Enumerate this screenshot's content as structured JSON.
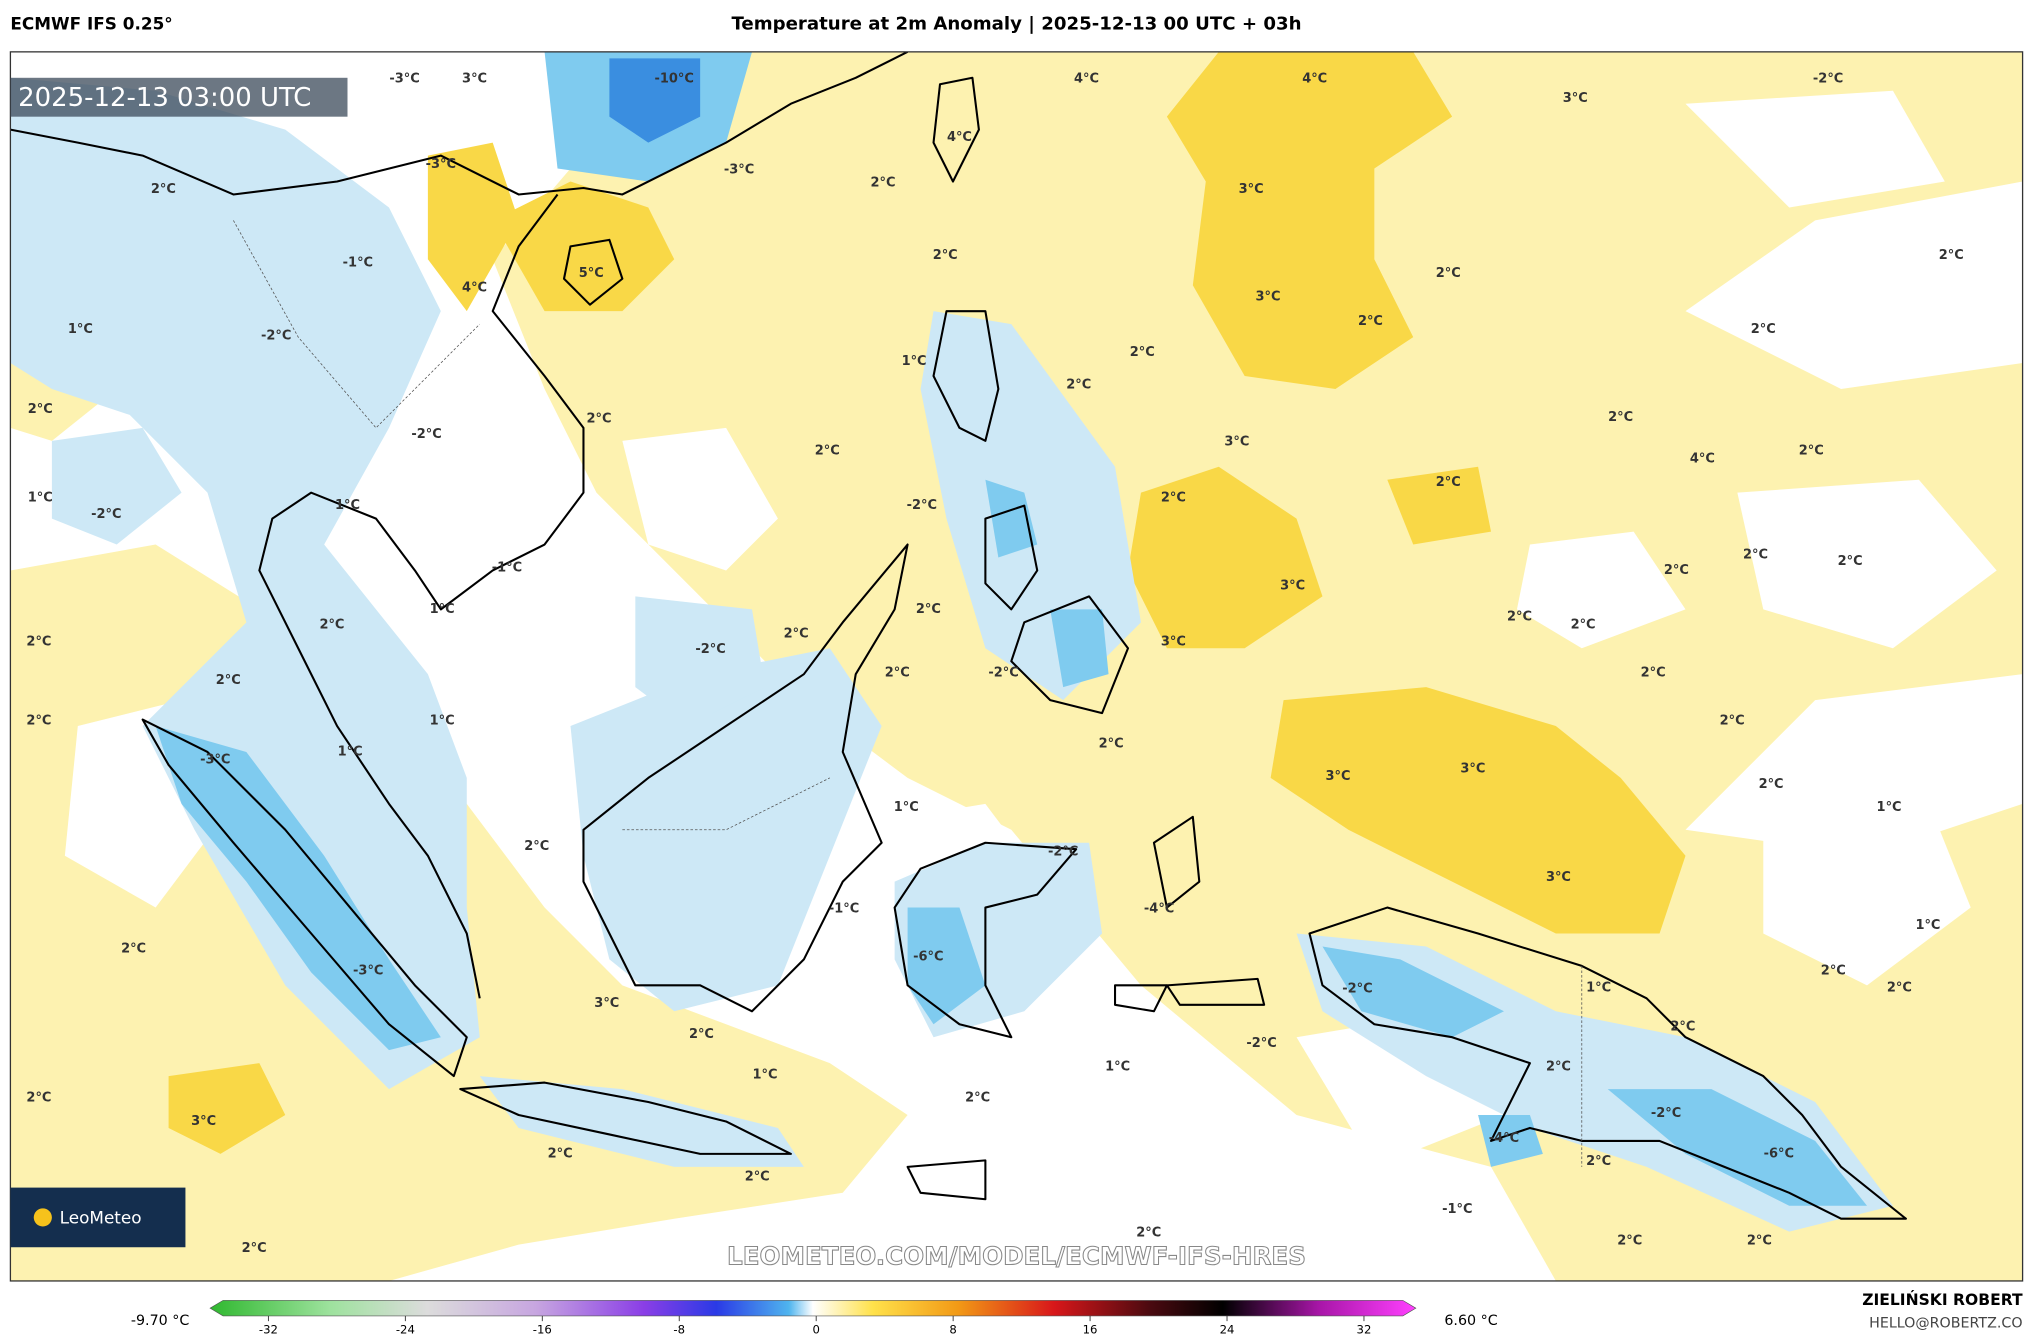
{
  "header": {
    "model": "ECMWF IFS 0.25°",
    "title": "Temperature at 2m Anomaly | 2025-12-13 00 UTC + 03h"
  },
  "map": {
    "timestamp": "2025-12-13 03:00 UTC",
    "logo": "LeoMeteo",
    "watermark": "LEOMETEO.COM/MODEL/ECMWF-IFS-HRES",
    "contour_labels": [
      "-3°C",
      "3°C",
      "-10°C",
      "4°C",
      "4°C",
      "3°C",
      "-2°C",
      "-3°C",
      "-3°C",
      "2°C",
      "2°C",
      "3°C",
      "4°C",
      "5°C",
      "4°C",
      "-1°C",
      "2°C",
      "2°C",
      "2°C",
      "3°C",
      "2°C",
      "2°C",
      "1°C",
      "-2°C",
      "2°C",
      "1°C",
      "2°C",
      "2°C",
      "2°C",
      "2°C",
      "2°C",
      "3°C",
      "-2°C",
      "4°C",
      "2°C",
      "1°C",
      "-2°C",
      "1°C",
      "2°C",
      "2°C",
      "-2°C",
      "3°C",
      "-1°C",
      "2°C",
      "2°C",
      "2°C",
      "2°C",
      "1°C",
      "2°C",
      "2°C",
      "-2°C",
      "2°C",
      "2°C",
      "2°C",
      "3°C",
      "2°C",
      "2°C",
      "-2°C",
      "2°C",
      "2°C",
      "1°C",
      "2°C",
      "-3°C",
      "1°C",
      "2°C",
      "3°C",
      "3°C",
      "2°C",
      "1°C",
      "1°C",
      "2°C",
      "-2°C",
      "-1°C",
      "-4°C",
      "3°C",
      "1°C",
      "2°C",
      "-3°C",
      "-6°C",
      "2°C",
      "3°C",
      "-2°C",
      "1°C",
      "2°C",
      "2°C",
      "2°C",
      "-2°C",
      "1°C",
      "1°C",
      "2°C",
      "2°C",
      "2°C",
      "-2°C",
      "3°C",
      "-4°C",
      "-6°C",
      "2°C",
      "2°C",
      "2°C",
      "-1°C",
      "2°C",
      "2°C",
      "2°C",
      "2°C"
    ]
  },
  "colorbar": {
    "min_label": "-9.70 °C",
    "max_label": "6.60 °C",
    "ticks": [
      -32,
      -24,
      -16,
      -8,
      0,
      8,
      16,
      24,
      32
    ]
  },
  "credits": {
    "author": "ZIELIŃSKI ROBERT",
    "email": "HELLO@ROBERTZ.CO"
  }
}
